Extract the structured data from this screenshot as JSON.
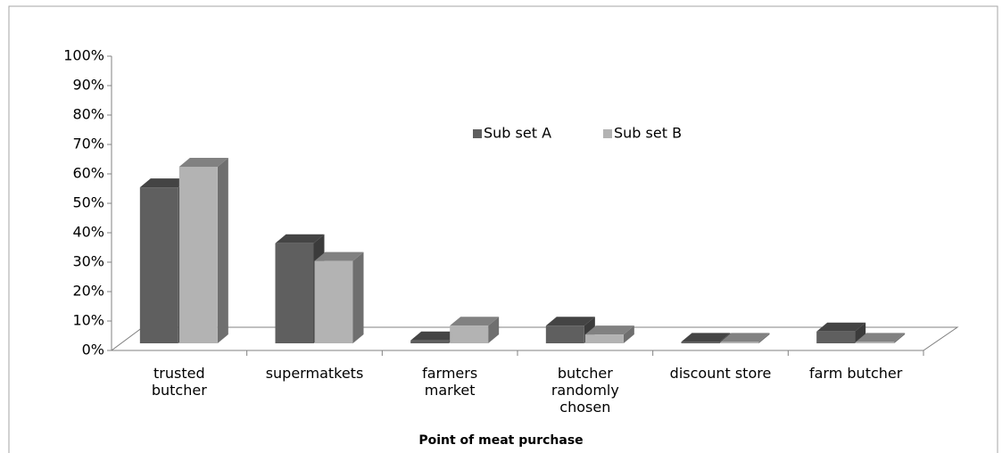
{
  "chart_data": {
    "type": "bar3d",
    "x_label": "Point of meat purchase",
    "categories": [
      "trusted butcher",
      "supermatkets",
      "farmers market",
      "butcher randomly chosen",
      "discount store",
      "farm butcher"
    ],
    "series": [
      {
        "name": "Sub set A",
        "color": "#5f5f5f",
        "values": [
          53,
          34,
          1,
          6,
          0.5,
          4
        ]
      },
      {
        "name": "Sub set B",
        "color": "#b3b3b3",
        "values": [
          60,
          28,
          6,
          3,
          0.5,
          0.5
        ]
      }
    ],
    "ylim": [
      0,
      100
    ],
    "yticks": [
      {
        "value": 0,
        "label": "0%"
      },
      {
        "value": 10,
        "label": "10%"
      },
      {
        "value": 20,
        "label": "20%"
      },
      {
        "value": 30,
        "label": "30%"
      },
      {
        "value": 40,
        "label": "40%"
      },
      {
        "value": 50,
        "label": "50%"
      },
      {
        "value": 60,
        "label": "60%"
      },
      {
        "value": 70,
        "label": "70%"
      },
      {
        "value": 80,
        "label": "80%"
      },
      {
        "value": 90,
        "label": "90%"
      },
      {
        "value": 100,
        "label": "100%"
      }
    ],
    "legend": "top-center"
  }
}
